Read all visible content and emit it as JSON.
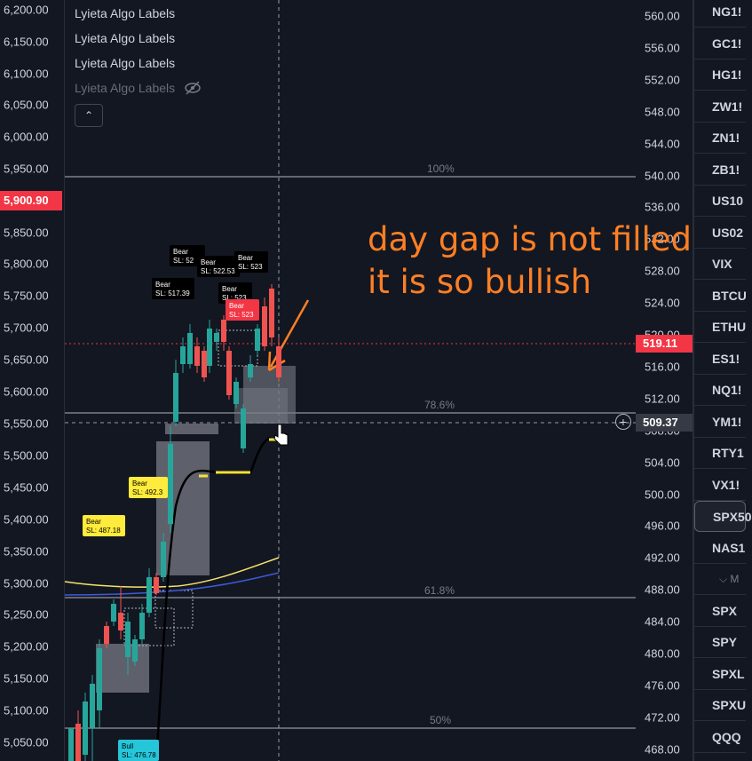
{
  "left_axis": {
    "labels": [
      "6,200.00",
      "6,150.00",
      "6,100.00",
      "6,050.00",
      "6,000.00",
      "5,950.00",
      "5,850.00",
      "5,800.00",
      "5,750.00",
      "5,700.00",
      "5,650.00",
      "5,600.00",
      "5,550.00",
      "5,500.00",
      "5,450.00",
      "5,400.00",
      "5,350.00",
      "5,300.00",
      "5,250.00",
      "5,200.00",
      "5,150.00",
      "5,100.00",
      "5,050.00"
    ],
    "highlight": "5,900.90"
  },
  "right_axis": {
    "labels": [
      "560.00",
      "556.00",
      "552.00",
      "548.00",
      "544.00",
      "540.00",
      "536.00",
      "532.00",
      "528.00",
      "524.00",
      "520.00",
      "516.00",
      "512.00",
      "508.00",
      "504.00",
      "500.00",
      "496.00",
      "492.00",
      "488.00",
      "484.00",
      "480.00",
      "476.00",
      "472.00",
      "468.00"
    ],
    "last_price": "519.11",
    "crosshair_price": "509.37"
  },
  "legend": {
    "items": [
      "Lyieta Algo Labels",
      "Lyieta Algo Labels",
      "Lyieta Algo Labels",
      "Lyieta Algo Labels"
    ],
    "collapse_icon": "chevron-up"
  },
  "fib_levels": [
    "100%",
    "78.6%",
    "61.8%",
    "50%"
  ],
  "signals": [
    {
      "title": "Bear",
      "sl": "SL: 517.39"
    },
    {
      "title": "Bear",
      "sl": "SL: 52"
    },
    {
      "title": "Bear",
      "sl": "SL: 522.53"
    },
    {
      "title": "Bear",
      "sl": "SL: 523"
    },
    {
      "title": "Bear",
      "sl": "SL: 523"
    },
    {
      "title": "Bear",
      "sl": "SL: 523"
    },
    {
      "title": "Bear",
      "sl": "SL: 492.3"
    },
    {
      "title": "Bear",
      "sl": "SL: 487.18"
    },
    {
      "title": "Bull",
      "sl": "SL: 476.78"
    }
  ],
  "annotation": {
    "line1": "day gap is not filled",
    "line2": "it is so bullish"
  },
  "watchlist": {
    "items": [
      "NG1!",
      "GC1!",
      "HG1!",
      "ZW1!",
      "ZN1!",
      "ZB1!",
      "US10",
      "US02",
      "VIX",
      "BTCU",
      "ETHU",
      "ES1!",
      "NQ1!",
      "YM1!",
      "RTY1",
      "VX1!",
      "SPX50",
      "NAS1"
    ],
    "section_label": "M",
    "items2": [
      "SPX",
      "SPY",
      "SPXL",
      "SPXU",
      "QQQ"
    ],
    "selected": "SPX50"
  },
  "colors": {
    "bg": "#131722",
    "up": "#26a69a",
    "down": "#ef5350",
    "annotation": "#ff7f24",
    "bear_label_black": "#000000",
    "bear_label_yellow": "#ffeb3b",
    "bull_label": "#26c6da",
    "last_price": "#f23645"
  }
}
